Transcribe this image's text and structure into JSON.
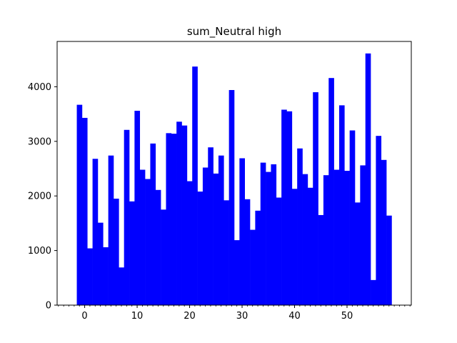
{
  "chart_data": {
    "type": "bar",
    "title": "sum_Neutral high",
    "xlabel": "",
    "ylabel": "",
    "color": "#0000ff",
    "xlim": [
      -5.25,
      62.25
    ],
    "ylim": [
      0,
      4830
    ],
    "x_ticks": [
      0,
      10,
      20,
      30,
      40,
      50
    ],
    "y_ticks": [
      0,
      1000,
      2000,
      3000,
      4000
    ],
    "x": [
      -1,
      0,
      1,
      2,
      3,
      4,
      5,
      6,
      7,
      8,
      9,
      10,
      11,
      12,
      13,
      14,
      15,
      16,
      17,
      18,
      19,
      20,
      21,
      22,
      23,
      24,
      25,
      26,
      27,
      28,
      29,
      30,
      31,
      32,
      33,
      34,
      35,
      36,
      37,
      38,
      39,
      40,
      41,
      42,
      43,
      44,
      45,
      46,
      47,
      48,
      49,
      50,
      51,
      52,
      53,
      54,
      55,
      56,
      57,
      58,
      59
    ],
    "values": [
      3670,
      3430,
      1040,
      2680,
      1510,
      1060,
      2740,
      1950,
      690,
      3210,
      1900,
      3560,
      2480,
      2310,
      2960,
      2110,
      1750,
      3150,
      3140,
      3360,
      3290,
      2270,
      4370,
      2080,
      2520,
      2890,
      2410,
      2740,
      1920,
      3940,
      1190,
      2690,
      1940,
      1380,
      1730,
      2610,
      2440,
      2580,
      1970,
      3580,
      3550,
      2130,
      2870,
      2400,
      2150,
      3900,
      1650,
      2380,
      4160,
      2480,
      3660,
      2460,
      3200,
      1880,
      2560,
      4610,
      460,
      3100,
      2660,
      1640,
      0
    ]
  }
}
